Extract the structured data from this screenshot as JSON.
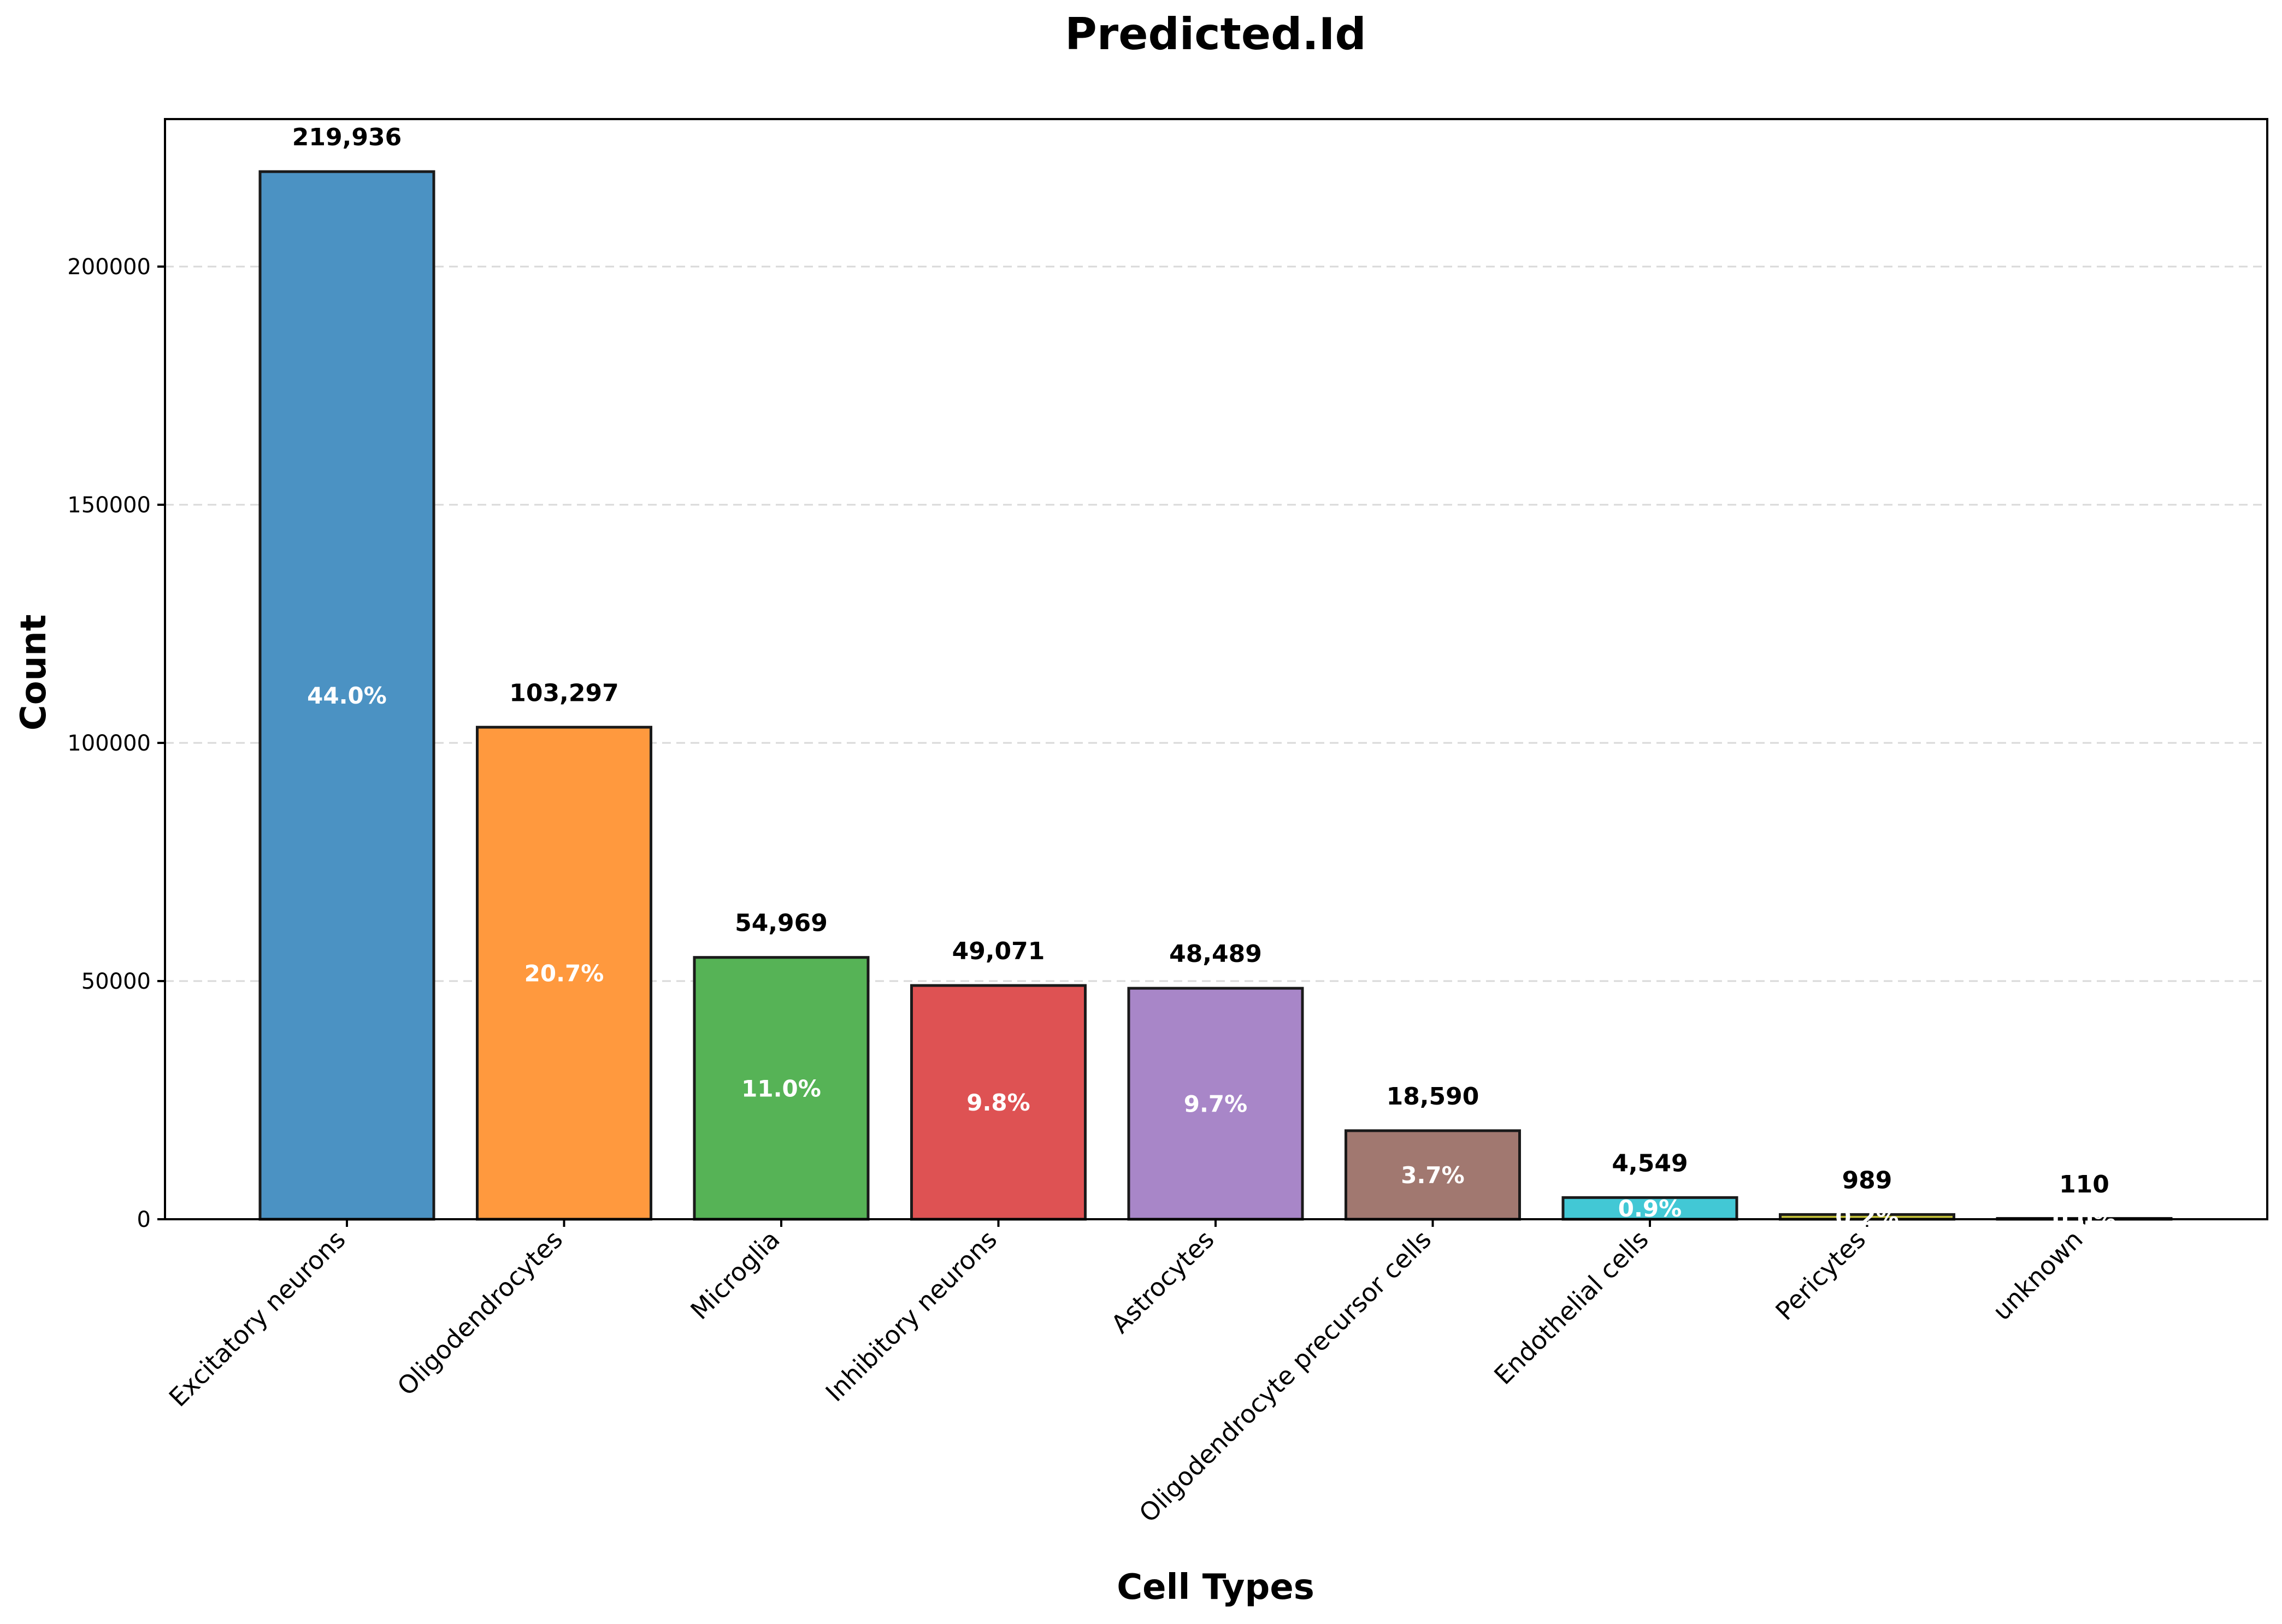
{
  "chart_data": {
    "type": "bar",
    "title": "Predicted.Id",
    "xlabel": "Cell Types",
    "ylabel": "Count",
    "ylim": [
      0,
      230966
    ],
    "yticks": [
      0,
      50000,
      100000,
      150000,
      200000
    ],
    "ytick_labels": [
      "0",
      "50000",
      "100000",
      "150000",
      "200000"
    ],
    "grid": "y, dashed",
    "categories": [
      "Excitatory neurons",
      "Oligodendrocytes",
      "Microglia",
      "Inhibitory neurons",
      "Astrocytes",
      "Oligodendrocyte precursor cells",
      "Endothelial cells",
      "Pericytes",
      "unknown"
    ],
    "values": [
      219936,
      103297,
      54969,
      49071,
      48489,
      18590,
      4549,
      989,
      110
    ],
    "value_labels": [
      "219,936",
      "103,297",
      "54,969",
      "49,071",
      "48,489",
      "18,590",
      "4,549",
      "989",
      "110"
    ],
    "percent_labels": [
      "44.0%",
      "20.7%",
      "11.0%",
      "9.8%",
      "9.7%",
      "3.7%",
      "0.9%",
      "0.2%",
      "0.0%"
    ],
    "colors": [
      "#4b92c3",
      "#ff993e",
      "#56b356",
      "#de5253",
      "#a886c8",
      "#a17870",
      "#42c8d5",
      "#c4c239",
      "#7f7f7f"
    ]
  }
}
